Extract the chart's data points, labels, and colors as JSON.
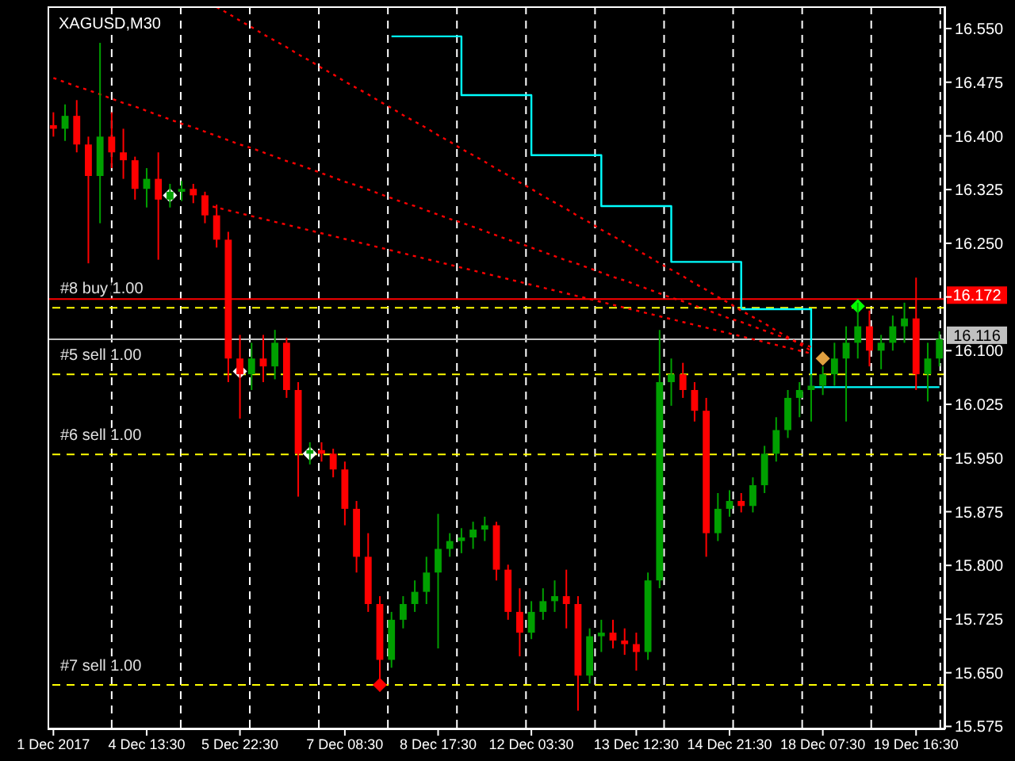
{
  "chart_data": {
    "type": "candlestick",
    "title": "XAGUSD,M30",
    "categories": [
      "1 Dec 2017",
      null,
      null,
      null,
      null,
      null,
      null,
      null,
      "4 Dec 13:30",
      null,
      null,
      null,
      null,
      null,
      null,
      null,
      "5 Dec 22:30",
      null,
      null,
      null,
      null,
      null,
      null,
      null,
      null,
      "7 Dec 08:30",
      null,
      null,
      null,
      null,
      null,
      null,
      null,
      "8 Dec 17:30",
      null,
      null,
      null,
      null,
      null,
      null,
      null,
      "12 Dec 03:30",
      null,
      null,
      null,
      null,
      null,
      null,
      null,
      null,
      "13 Dec 12:30",
      null,
      null,
      null,
      null,
      null,
      null,
      null,
      "14 Dec 21:30",
      null,
      null,
      null,
      null,
      null,
      null,
      null,
      "18 Dec 07:30",
      null,
      null,
      null,
      null,
      null,
      null,
      null,
      "19 Dec 16:30",
      null,
      null
    ],
    "ohlc": [
      [
        16.415,
        16.433,
        16.399,
        16.41
      ],
      [
        16.41,
        16.444,
        16.393,
        16.428
      ],
      [
        16.428,
        16.45,
        16.377,
        16.388
      ],
      [
        16.388,
        16.399,
        16.222,
        16.344
      ],
      [
        16.344,
        16.53,
        16.278,
        16.399
      ],
      [
        16.399,
        16.433,
        16.355,
        16.377
      ],
      [
        16.377,
        16.41,
        16.34,
        16.366
      ],
      [
        16.366,
        16.371,
        16.311,
        16.326
      ],
      [
        16.326,
        16.355,
        16.3,
        16.34
      ],
      [
        16.34,
        16.377,
        16.227,
        16.311
      ],
      [
        16.311,
        16.333,
        16.3,
        16.322
      ],
      [
        16.322,
        16.337,
        16.309,
        16.326
      ],
      [
        16.326,
        16.333,
        16.306,
        16.317
      ],
      [
        16.317,
        16.322,
        16.278,
        16.289
      ],
      [
        16.289,
        16.304,
        16.244,
        16.255
      ],
      [
        16.255,
        16.266,
        16.056,
        16.089
      ],
      [
        16.089,
        16.122,
        16.005,
        16.067
      ],
      [
        16.067,
        16.111,
        16.045,
        16.089
      ],
      [
        16.089,
        16.122,
        16.056,
        16.078
      ],
      [
        16.078,
        16.129,
        16.06,
        16.111
      ],
      [
        16.111,
        16.118,
        16.034,
        16.045
      ],
      [
        16.045,
        16.056,
        15.896,
        15.956
      ],
      [
        15.956,
        15.972,
        15.941,
        15.961
      ],
      [
        15.961,
        15.972,
        15.945,
        15.956
      ],
      [
        15.956,
        15.963,
        15.923,
        15.934
      ],
      [
        15.934,
        15.945,
        15.856,
        15.879
      ],
      [
        15.879,
        15.89,
        15.79,
        15.812
      ],
      [
        15.812,
        15.845,
        15.735,
        15.746
      ],
      [
        15.746,
        15.757,
        15.624,
        15.668
      ],
      [
        15.668,
        15.735,
        15.657,
        15.724
      ],
      [
        15.724,
        15.757,
        15.712,
        15.746
      ],
      [
        15.746,
        15.779,
        15.735,
        15.763
      ],
      [
        15.763,
        15.812,
        15.746,
        15.79
      ],
      [
        15.79,
        15.872,
        15.684,
        15.823
      ],
      [
        15.823,
        15.845,
        15.812,
        15.834
      ],
      [
        15.834,
        15.852,
        15.817,
        15.839
      ],
      [
        15.839,
        15.861,
        15.823,
        15.85
      ],
      [
        15.85,
        15.868,
        15.834,
        15.856
      ],
      [
        15.856,
        15.861,
        15.779,
        15.794
      ],
      [
        15.794,
        15.801,
        15.724,
        15.735
      ],
      [
        15.735,
        15.768,
        15.673,
        15.706
      ],
      [
        15.706,
        15.75,
        15.697,
        15.735
      ],
      [
        15.735,
        15.768,
        15.724,
        15.75
      ],
      [
        15.75,
        15.779,
        15.735,
        15.757
      ],
      [
        15.757,
        15.794,
        15.712,
        15.746
      ],
      [
        15.746,
        15.757,
        15.597,
        15.646
      ],
      [
        15.646,
        15.712,
        15.635,
        15.701
      ],
      [
        15.701,
        15.724,
        15.679,
        15.706
      ],
      [
        15.706,
        15.724,
        15.684,
        15.695
      ],
      [
        15.695,
        15.712,
        15.675,
        15.69
      ],
      [
        15.69,
        15.706,
        15.653,
        15.679
      ],
      [
        15.679,
        15.79,
        15.668,
        15.779
      ],
      [
        15.779,
        16.129,
        15.768,
        16.056
      ],
      [
        16.056,
        16.089,
        16.023,
        16.067
      ],
      [
        16.067,
        16.083,
        16.034,
        16.045
      ],
      [
        16.045,
        16.056,
        16.001,
        16.016
      ],
      [
        16.016,
        16.034,
        15.812,
        15.845
      ],
      [
        15.845,
        15.901,
        15.834,
        15.879
      ],
      [
        15.879,
        15.905,
        15.868,
        15.89
      ],
      [
        15.89,
        15.901,
        15.874,
        15.883
      ],
      [
        15.883,
        15.923,
        15.874,
        15.912
      ],
      [
        15.912,
        15.967,
        15.901,
        15.956
      ],
      [
        15.956,
        16.007,
        15.945,
        15.989
      ],
      [
        15.989,
        16.045,
        15.978,
        16.034
      ],
      [
        16.034,
        16.056,
        16.007,
        16.045
      ],
      [
        16.045,
        16.067,
        16.001,
        16.051
      ],
      [
        16.051,
        16.078,
        16.038,
        16.067
      ],
      [
        16.067,
        16.111,
        16.051,
        16.089
      ],
      [
        16.089,
        16.134,
        16.001,
        16.111
      ],
      [
        16.111,
        16.167,
        16.089,
        16.134
      ],
      [
        16.134,
        16.156,
        16.078,
        16.1
      ],
      [
        16.1,
        16.122,
        16.074,
        16.111
      ],
      [
        16.111,
        16.149,
        16.1,
        16.134
      ],
      [
        16.134,
        16.167,
        16.111,
        16.145
      ],
      [
        16.145,
        16.202,
        16.045,
        16.067
      ],
      [
        16.067,
        16.111,
        16.029,
        16.089
      ],
      [
        16.089,
        16.127,
        16.078,
        16.116
      ]
    ],
    "colors": [
      "#ff0000",
      "#00a000",
      "#ff0000",
      "#ff0000",
      "#00a000",
      "#ff0000",
      "#ff0000",
      "#ff0000",
      "#00a000",
      "#ff0000",
      "#00a000",
      "#00a000",
      "#ff0000",
      "#ff0000",
      "#ff0000",
      "#ff0000",
      "#ff0000",
      "#00a000",
      "#ff0000",
      "#00a000",
      "#ff0000",
      "#ff0000",
      "#00a000",
      "#ff0000",
      "#ff0000",
      "#ff0000",
      "#ff0000",
      "#ff0000",
      "#ff0000",
      "#00a000",
      "#00a000",
      "#00a000",
      "#00a000",
      "#00a000",
      "#00a000",
      "#00a000",
      "#00a000",
      "#00a000",
      "#ff0000",
      "#ff0000",
      "#ff0000",
      "#00a000",
      "#00a000",
      "#00a000",
      "#ff0000",
      "#ff0000",
      "#00a000",
      "#00a000",
      "#ff0000",
      "#ff0000",
      "#ff0000",
      "#00a000",
      "#00a000",
      "#00a000",
      "#ff0000",
      "#ff0000",
      "#ff0000",
      "#00a000",
      "#00a000",
      "#ff0000",
      "#00a000",
      "#00a000",
      "#00a000",
      "#00a000",
      "#00a000",
      "#00a000",
      "#00a000",
      "#00a000",
      "#00a000",
      "#00a000",
      "#ff0000",
      "#00a000",
      "#00a000",
      "#00a000",
      "#ff0000",
      "#00a000",
      "#00a000"
    ],
    "series": [
      {
        "type": "step",
        "color": "#00ffff",
        "line_style": "solid",
        "values": [
          null,
          null,
          null,
          null,
          null,
          null,
          null,
          null,
          null,
          null,
          null,
          null,
          null,
          null,
          null,
          null,
          null,
          null,
          null,
          null,
          null,
          null,
          null,
          null,
          null,
          null,
          null,
          null,
          null,
          16.539,
          16.539,
          16.539,
          16.539,
          16.539,
          16.539,
          16.457,
          16.457,
          16.457,
          16.457,
          16.457,
          16.457,
          16.373,
          16.373,
          16.373,
          16.373,
          16.373,
          16.373,
          16.302,
          16.302,
          16.302,
          16.302,
          16.302,
          16.302,
          16.224,
          16.224,
          16.224,
          16.224,
          16.224,
          16.224,
          16.158,
          16.158,
          16.158,
          16.158,
          16.158,
          16.158,
          16.049,
          16.049,
          16.049,
          16.049,
          16.049,
          16.049,
          16.049,
          16.049,
          16.049,
          16.049,
          16.049,
          16.049
        ]
      },
      {
        "type": "line",
        "color": "#ff0000",
        "line_style": "dotted",
        "values": [
          null,
          null,
          null,
          null,
          null,
          null,
          null,
          null,
          null,
          null,
          null,
          null,
          null,
          null,
          16.58,
          16.571,
          16.561,
          16.552,
          16.542,
          16.533,
          16.524,
          16.514,
          16.505,
          16.495,
          16.486,
          16.476,
          16.467,
          16.458,
          16.448,
          16.439,
          16.429,
          16.42,
          16.411,
          16.401,
          16.392,
          16.382,
          16.373,
          16.364,
          16.354,
          16.345,
          16.335,
          16.326,
          16.316,
          16.307,
          16.298,
          16.288,
          16.279,
          16.269,
          16.26,
          16.251,
          16.241,
          16.232,
          16.222,
          16.213,
          16.204,
          16.194,
          16.185,
          16.175,
          16.166,
          16.156,
          16.147,
          16.138,
          16.128,
          16.119,
          16.109,
          16.1,
          null,
          null,
          null,
          null,
          null,
          null,
          null,
          null,
          null,
          null,
          null
        ]
      },
      {
        "type": "line",
        "color": "#ff0000",
        "line_style": "dotted",
        "values": [
          16.481,
          16.475,
          16.469,
          16.464,
          16.458,
          16.452,
          16.446,
          16.441,
          16.435,
          16.429,
          16.423,
          16.417,
          16.412,
          16.406,
          16.4,
          16.394,
          16.388,
          16.383,
          16.377,
          16.371,
          16.365,
          16.36,
          16.354,
          16.348,
          16.342,
          16.336,
          16.331,
          16.325,
          16.319,
          16.313,
          16.307,
          16.302,
          16.296,
          16.29,
          16.284,
          16.279,
          16.273,
          16.267,
          16.261,
          16.255,
          16.25,
          16.244,
          16.238,
          16.232,
          16.226,
          16.221,
          16.215,
          16.209,
          16.203,
          16.198,
          16.192,
          16.186,
          16.18,
          16.174,
          16.169,
          16.163,
          16.157,
          16.151,
          16.145,
          16.14,
          16.134,
          16.128,
          16.122,
          16.117,
          16.111,
          16.105,
          null,
          null,
          null,
          null,
          null,
          null,
          null,
          null,
          null,
          null,
          null
        ]
      },
      {
        "type": "line",
        "color": "#ff0000",
        "line_style": "dotted",
        "values": [
          null,
          null,
          null,
          null,
          null,
          null,
          null,
          null,
          null,
          null,
          null,
          null,
          null,
          16.304,
          16.3,
          16.296,
          16.292,
          16.288,
          16.284,
          16.28,
          16.276,
          16.272,
          16.268,
          16.264,
          16.26,
          16.256,
          16.252,
          16.248,
          16.244,
          16.24,
          16.236,
          16.232,
          16.228,
          16.224,
          16.22,
          16.216,
          16.212,
          16.208,
          16.204,
          16.2,
          16.196,
          16.192,
          16.188,
          16.184,
          16.18,
          16.176,
          16.172,
          16.168,
          16.164,
          16.16,
          16.156,
          16.152,
          16.148,
          16.144,
          16.14,
          16.136,
          16.132,
          16.128,
          16.124,
          16.12,
          16.116,
          16.112,
          16.108,
          16.104,
          16.1,
          16.096,
          null,
          null,
          null,
          null,
          null,
          null,
          null,
          null,
          null,
          null,
          null
        ]
      },
      {
        "type": "scatter",
        "marker": "diamond",
        "values": [
          null,
          null,
          null,
          null,
          null,
          null,
          null,
          null,
          null,
          null,
          16.317,
          null,
          null,
          null,
          null,
          null,
          16.071,
          null,
          null,
          null,
          null,
          null,
          15.956,
          null,
          null,
          null,
          null,
          null,
          15.633,
          null,
          null,
          null,
          null,
          null,
          null,
          null,
          null,
          null,
          null,
          null,
          null,
          null,
          null,
          null,
          null,
          null,
          null,
          null,
          null,
          null,
          null,
          null,
          null,
          null,
          null,
          null,
          null,
          null,
          null,
          null,
          null,
          null,
          null,
          null,
          null,
          null,
          16.089,
          null,
          null,
          16.162,
          null,
          null,
          null,
          null,
          null,
          null,
          null
        ],
        "colors": [
          null,
          null,
          null,
          null,
          null,
          null,
          null,
          null,
          null,
          null,
          "#ffffff",
          null,
          null,
          null,
          null,
          null,
          "#ffffff",
          null,
          null,
          null,
          null,
          null,
          "#ffffff",
          null,
          null,
          null,
          null,
          null,
          "#ff0000",
          null,
          null,
          null,
          null,
          null,
          null,
          null,
          null,
          null,
          null,
          null,
          null,
          null,
          null,
          null,
          null,
          null,
          null,
          null,
          null,
          null,
          null,
          null,
          null,
          null,
          null,
          null,
          null,
          null,
          null,
          null,
          null,
          null,
          null,
          null,
          null,
          null,
          "#e0a040",
          null,
          null,
          "#00ff00",
          null,
          null,
          null,
          null,
          null,
          null,
          null
        ]
      }
    ],
    "grid": "x",
    "ylim": [
      15.571,
      16.581
    ],
    "yticks": [
      {
        "value": 15.575,
        "label": "15.575"
      },
      {
        "value": 15.65,
        "label": "15.650"
      },
      {
        "value": 15.725,
        "label": "15.725"
      },
      {
        "value": 15.8,
        "label": "15.800"
      },
      {
        "value": 15.875,
        "label": "15.875"
      },
      {
        "value": 15.95,
        "label": "15.950"
      },
      {
        "value": 16.025,
        "label": "16.025"
      },
      {
        "value": 16.1,
        "label": "16.100"
      },
      {
        "value": 16.175,
        "label": null
      },
      {
        "value": 16.25,
        "label": "16.250"
      },
      {
        "value": 16.325,
        "label": "16.325"
      },
      {
        "value": 16.4,
        "label": "16.400"
      },
      {
        "value": 16.475,
        "label": "16.475"
      },
      {
        "value": 16.55,
        "label": "16.550"
      }
    ],
    "ref_lines": [
      {
        "axis": "y",
        "value": 16.16,
        "label": "#8 buy 1.00",
        "color": "#ffff00",
        "line_style": "dashed"
      },
      {
        "axis": "y",
        "value": 16.067,
        "label": "#5 sell 1.00",
        "color": "#ffff00",
        "line_style": "dashed"
      },
      {
        "axis": "y",
        "value": 15.955,
        "label": "#6 sell 1.00",
        "color": "#ffff00",
        "line_style": "dashed"
      },
      {
        "axis": "y",
        "value": 15.633,
        "label": "#7 sell 1.00",
        "color": "#ffff00",
        "line_style": "dashed"
      },
      {
        "axis": "y",
        "value": 16.172,
        "label": "16.172",
        "color": "#ff0000",
        "line_style": "solid"
      },
      {
        "axis": "y",
        "value": 16.116,
        "label": "16.116",
        "color": "#c0c0c0",
        "line_style": "solid"
      }
    ]
  }
}
